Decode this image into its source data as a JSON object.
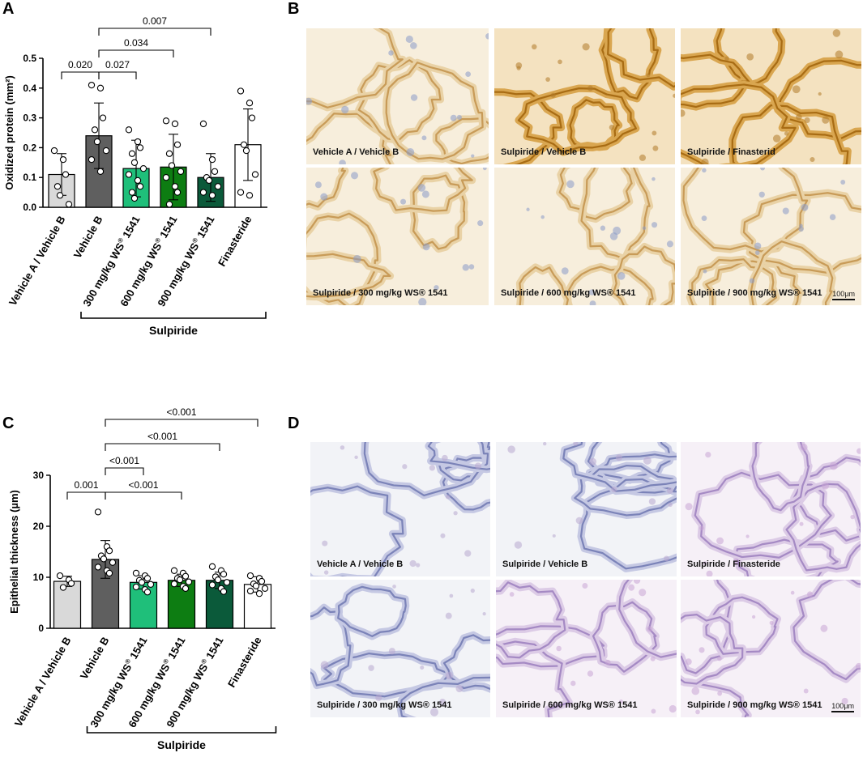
{
  "panels": {
    "a": {
      "label": "A"
    },
    "b": {
      "label": "B"
    },
    "c": {
      "label": "C"
    },
    "d": {
      "label": "D"
    }
  },
  "colors": {
    "vehicle_a": "#d9d9d9",
    "vehicle_b": "#5f5f5f",
    "wsk300": "#1fbf7a",
    "wsk600": "#0d7d12",
    "wsk900": "#0b5a3a",
    "finasteride": "#ffffff",
    "ihc_bg": "#f6ecd8",
    "he_bg": "#f1f0f8"
  },
  "micrographs": {
    "b": [
      {
        "caption": "Vehicle A / Vehicle B",
        "stain": "ihc-light"
      },
      {
        "caption": "Sulpiride / Vehicle B",
        "stain": "ihc-dark"
      },
      {
        "caption": "Sulpiride / Finasterid",
        "stain": "ihc-dark"
      },
      {
        "caption": "Sulpiride / 300 mg/kg WS® 1541",
        "stain": "ihc-light"
      },
      {
        "caption": "Sulpiride / 600 mg/kg WS® 1541",
        "stain": "ihc-light"
      },
      {
        "caption": "Sulpiride / 900 mg/kg WS® 1541",
        "stain": "ihc-light"
      }
    ],
    "d": [
      {
        "caption": "Vehicle A / Vehicle B",
        "stain": "he-blue"
      },
      {
        "caption": "Sulpiride / Vehicle B",
        "stain": "he-blue"
      },
      {
        "caption": "Sulpiride / Finasteride",
        "stain": "he-pink"
      },
      {
        "caption": "Sulpiride / 300 mg/kg WS® 1541",
        "stain": "he-blue"
      },
      {
        "caption": "Sulpiride / 600 mg/kg WS® 1541",
        "stain": "he-pink"
      },
      {
        "caption": "Sulpiride / 900 mg/kg WS® 1541",
        "stain": "he-pink"
      }
    ],
    "scale_bar": "100µm"
  },
  "chart_data": [
    {
      "type": "bar",
      "panel": "A",
      "ylabel": "Oxidized protein (mm²)",
      "ylim": [
        0,
        0.5
      ],
      "yticks": [
        "0.0",
        "0.1",
        "0.2",
        "0.3",
        "0.4",
        "0.5"
      ],
      "categories": [
        "Vehicle A / Vehicle B",
        "Vehicle B",
        "300 mg/kg WS® 1541",
        "600 mg/kg WS® 1541",
        "900 mg/kg WS® 1541",
        "Finasteride"
      ],
      "group_label": "Sulpiride",
      "group_span": [
        1,
        5
      ],
      "values": [
        0.11,
        0.24,
        0.13,
        0.135,
        0.1,
        0.21
      ],
      "sd": [
        0.07,
        0.11,
        0.095,
        0.11,
        0.08,
        0.12
      ],
      "points": [
        [
          0.19,
          0.16,
          0.11,
          0.07,
          0.04,
          0.01
        ],
        [
          0.41,
          0.4,
          0.3,
          0.26,
          0.22,
          0.19,
          0.16,
          0.12
        ],
        [
          0.26,
          0.22,
          0.2,
          0.18,
          0.15,
          0.13,
          0.11,
          0.09,
          0.07,
          0.05,
          0.03
        ],
        [
          0.29,
          0.28,
          0.21,
          0.18,
          0.14,
          0.12,
          0.1,
          0.07,
          0.05,
          0.01
        ],
        [
          0.28,
          0.16,
          0.12,
          0.1,
          0.09,
          0.07,
          0.05,
          0.04
        ],
        [
          0.39,
          0.35,
          0.3,
          0.21,
          0.19,
          0.11,
          0.05,
          0.04
        ]
      ],
      "comparisons": [
        {
          "from": 0,
          "to": 1,
          "label": "0.020",
          "level": 0
        },
        {
          "from": 1,
          "to": 2,
          "label": "0.027",
          "level": 0
        },
        {
          "from": 1,
          "to": 3,
          "label": "0.034",
          "level": 1
        },
        {
          "from": 1,
          "to": 4,
          "label": "0.007",
          "level": 2
        }
      ]
    },
    {
      "type": "bar",
      "panel": "C",
      "ylabel": "Epithelial thickness (µm)",
      "ylim": [
        0,
        30
      ],
      "yticks": [
        "0",
        "10",
        "20",
        "30"
      ],
      "categories": [
        "Vehicle A / Vehicle B",
        "Vehicle B",
        "300 mg/kg WS® 1541",
        "600 mg/kg WS® 1541",
        "900 mg/kg WS® 1541",
        "Finasteride"
      ],
      "group_label": "Sulpiride",
      "group_span": [
        1,
        5
      ],
      "values": [
        9.2,
        13.5,
        9.0,
        9.4,
        9.4,
        8.6
      ],
      "sd": [
        1.0,
        3.7,
        1.3,
        1.2,
        1.6,
        1.5
      ],
      "points": [
        [
          10.3,
          9.5,
          8.8,
          8.0
        ],
        [
          22.8,
          16.0,
          15.2,
          14.2,
          13.6,
          12.9,
          12.0,
          11.3,
          10.8
        ],
        [
          10.8,
          10.3,
          9.8,
          9.4,
          9.0,
          8.6,
          8.1,
          7.6,
          7.1
        ],
        [
          11.3,
          10.8,
          10.2,
          9.8,
          9.5,
          9.1,
          8.7,
          8.2,
          7.8
        ],
        [
          12.1,
          11.3,
          10.6,
          10.1,
          9.5,
          9.0,
          8.5,
          7.8,
          7.2
        ],
        [
          10.3,
          9.8,
          9.2,
          8.7,
          8.3,
          7.8,
          7.3,
          6.8
        ]
      ],
      "comparisons": [
        {
          "from": 0,
          "to": 1,
          "label": "0.001",
          "level": 0
        },
        {
          "from": 1,
          "to": 3,
          "label": "<0.001",
          "level": 0
        },
        {
          "from": 1,
          "to": 2,
          "label": "<0.001",
          "level": 1
        },
        {
          "from": 1,
          "to": 4,
          "label": "<0.001",
          "level": 2
        },
        {
          "from": 1,
          "to": 5,
          "label": "<0.001",
          "level": 3
        }
      ]
    }
  ]
}
